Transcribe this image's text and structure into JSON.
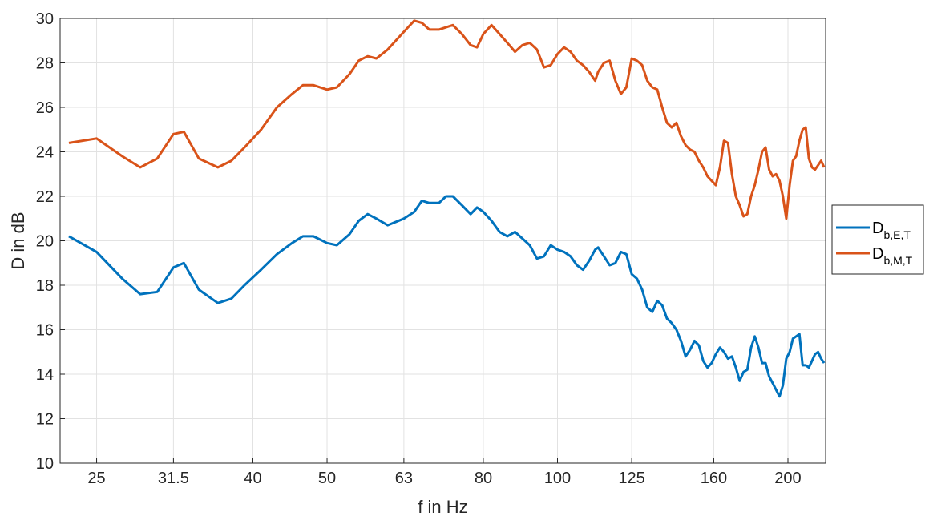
{
  "chart_data": {
    "type": "line",
    "title": "",
    "xlabel": "f in Hz",
    "ylabel": "D in dB",
    "x_scale": "log",
    "xlim": [
      22.4,
      224
    ],
    "ylim": [
      10,
      30
    ],
    "grid": true,
    "xticks": [
      25,
      31.5,
      40,
      50,
      63,
      80,
      100,
      125,
      160,
      200
    ],
    "xtick_labels": [
      "25",
      "31.5",
      "40",
      "50",
      "63",
      "80",
      "100",
      "125",
      "160",
      "200"
    ],
    "yticks": [
      10,
      12,
      14,
      16,
      18,
      20,
      22,
      24,
      26,
      28,
      30
    ],
    "ytick_labels": [
      "10",
      "12",
      "14",
      "16",
      "18",
      "20",
      "22",
      "24",
      "26",
      "28",
      "30"
    ],
    "legend_position": "outside-right",
    "series": [
      {
        "name": "D",
        "name_sub": "b,E,T",
        "color": "#0072BD",
        "x": [
          23,
          25,
          27,
          28.5,
          30,
          31.5,
          32.5,
          34,
          36,
          37.5,
          39,
          41,
          43,
          45,
          46.5,
          48,
          50,
          51.5,
          53.5,
          55,
          56.5,
          58,
          60,
          63,
          65,
          66.5,
          68,
          70,
          71.5,
          73,
          75,
          77,
          78.5,
          80,
          82,
          84,
          86,
          88,
          90,
          92,
          94,
          96,
          98,
          100,
          102,
          104,
          106,
          108,
          110,
          112,
          113,
          115,
          117,
          119,
          121,
          123,
          125,
          127,
          129,
          131,
          133,
          135,
          137,
          139,
          141,
          143,
          145,
          147,
          149,
          151,
          153,
          155,
          157,
          159,
          161,
          163,
          165,
          167,
          169,
          171,
          173,
          175,
          177,
          179,
          181,
          183,
          185,
          187,
          189,
          191,
          193,
          195,
          197,
          199,
          201,
          203,
          205,
          207,
          209,
          211,
          213,
          215,
          217,
          219,
          221,
          223
        ],
        "y": [
          20.2,
          19.5,
          18.3,
          17.6,
          17.7,
          18.8,
          19.0,
          17.8,
          17.2,
          17.4,
          18.0,
          18.7,
          19.4,
          19.9,
          20.2,
          20.2,
          19.9,
          19.8,
          20.3,
          20.9,
          21.2,
          21.0,
          20.7,
          21.0,
          21.3,
          21.8,
          21.7,
          21.7,
          22.0,
          22.0,
          21.6,
          21.2,
          21.5,
          21.3,
          20.9,
          20.4,
          20.2,
          20.4,
          20.1,
          19.8,
          19.2,
          19.3,
          19.8,
          19.6,
          19.5,
          19.3,
          18.9,
          18.7,
          19.1,
          19.6,
          19.7,
          19.3,
          18.9,
          19.0,
          19.5,
          19.4,
          18.5,
          18.3,
          17.8,
          17.0,
          16.8,
          17.3,
          17.1,
          16.5,
          16.3,
          16.0,
          15.5,
          14.8,
          15.1,
          15.5,
          15.3,
          14.6,
          14.3,
          14.5,
          14.9,
          15.2,
          15.0,
          14.7,
          14.8,
          14.3,
          13.7,
          14.1,
          14.2,
          15.2,
          15.7,
          15.2,
          14.5,
          14.5,
          13.9,
          13.6,
          13.3,
          13.0,
          13.5,
          14.7,
          15.0,
          15.6,
          15.7,
          15.8,
          14.4,
          14.4,
          14.3,
          14.6,
          14.9,
          15.0,
          14.7,
          14.5
        ]
      },
      {
        "name": "D",
        "name_sub": "b,M,T",
        "color": "#D95319",
        "x": [
          23,
          25,
          27,
          28.5,
          30,
          31.5,
          32.5,
          34,
          36,
          37.5,
          39,
          41,
          43,
          45,
          46.5,
          48,
          50,
          51.5,
          53.5,
          55,
          56.5,
          58,
          60,
          63,
          65,
          66.5,
          68,
          70,
          71.5,
          73,
          75,
          77,
          78.5,
          80,
          82,
          84,
          86,
          88,
          90,
          92,
          94,
          96,
          98,
          100,
          102,
          104,
          106,
          108,
          110,
          112,
          113,
          115,
          117,
          119,
          121,
          123,
          125,
          127,
          129,
          131,
          133,
          135,
          137,
          139,
          141,
          143,
          145,
          147,
          149,
          151,
          153,
          155,
          157,
          159,
          161,
          163,
          165,
          167,
          169,
          171,
          173,
          175,
          177,
          179,
          181,
          183,
          185,
          187,
          189,
          191,
          193,
          195,
          197,
          199,
          201,
          203,
          205,
          207,
          209,
          211,
          213,
          215,
          217,
          219,
          221,
          223
        ],
        "y": [
          24.4,
          24.6,
          23.8,
          23.3,
          23.7,
          24.8,
          24.9,
          23.7,
          23.3,
          23.6,
          24.2,
          25.0,
          26.0,
          26.6,
          27.0,
          27.0,
          26.8,
          26.9,
          27.5,
          28.1,
          28.3,
          28.2,
          28.6,
          29.4,
          29.9,
          29.8,
          29.5,
          29.5,
          29.6,
          29.7,
          29.3,
          28.8,
          28.7,
          29.3,
          29.7,
          29.3,
          28.9,
          28.5,
          28.8,
          28.9,
          28.6,
          27.8,
          27.9,
          28.4,
          28.7,
          28.5,
          28.1,
          27.9,
          27.6,
          27.2,
          27.6,
          28.0,
          28.1,
          27.2,
          26.6,
          26.9,
          28.2,
          28.1,
          27.9,
          27.2,
          26.9,
          26.8,
          26.0,
          25.3,
          25.1,
          25.3,
          24.7,
          24.3,
          24.1,
          24.0,
          23.6,
          23.3,
          22.9,
          22.7,
          22.5,
          23.3,
          24.5,
          24.4,
          23.0,
          22.0,
          21.6,
          21.1,
          21.2,
          22.0,
          22.5,
          23.2,
          24.0,
          24.2,
          23.2,
          22.9,
          23.0,
          22.7,
          22.0,
          21.0,
          22.5,
          23.6,
          23.8,
          24.5,
          25.0,
          25.1,
          23.7,
          23.3,
          23.2,
          23.4,
          23.6,
          23.3
        ]
      }
    ]
  }
}
